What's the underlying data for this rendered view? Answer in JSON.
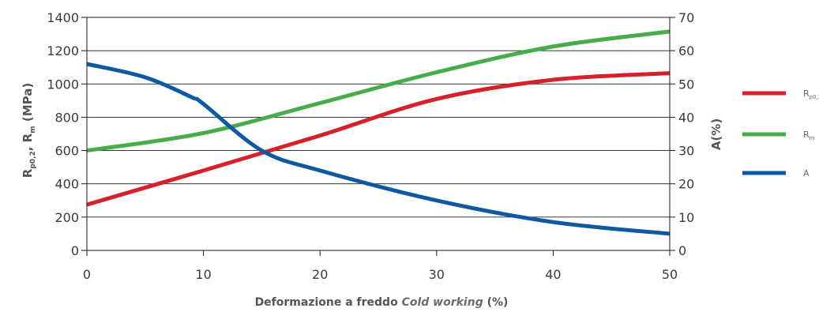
{
  "chart_data": {
    "type": "line",
    "x": [
      0,
      10,
      20,
      30,
      40,
      50
    ],
    "xlim": [
      0,
      50
    ],
    "xticks": [
      0,
      10,
      20,
      30,
      40,
      50
    ],
    "xlabel": {
      "main": "Deformazione a freddo ",
      "italic": "Cold working",
      "unit": " (%)"
    },
    "y_left": {
      "lim": [
        0,
        1400
      ],
      "ticks": [
        0,
        200,
        400,
        600,
        800,
        1000,
        1200,
        1400
      ],
      "label": {
        "r": "R",
        "rp_sub": "p0,2",
        "sep": ", R",
        "rm_sub": "m",
        "unit": " (MPa)"
      }
    },
    "y_right": {
      "lim": [
        0,
        70
      ],
      "ticks": [
        0,
        10,
        20,
        30,
        40,
        50,
        60,
        70
      ],
      "label": "A(%)"
    },
    "grid": "horizontal",
    "legend_position": "right",
    "series": [
      {
        "id": "rp02",
        "legend_main": "R",
        "legend_sub": "p0,2",
        "axis": "left",
        "color": "#d7202a",
        "points": [
          [
            0,
            275
          ],
          [
            10,
            480
          ],
          [
            20,
            690
          ],
          [
            30,
            910
          ],
          [
            40,
            1025
          ],
          [
            50,
            1065
          ]
        ]
      },
      {
        "id": "rm",
        "legend_main": "R",
        "legend_sub": "m",
        "axis": "left",
        "color": "#46ad48",
        "points": [
          [
            0,
            600
          ],
          [
            10,
            705
          ],
          [
            20,
            885
          ],
          [
            30,
            1070
          ],
          [
            40,
            1225
          ],
          [
            50,
            1315
          ]
        ]
      },
      {
        "id": "a",
        "legend_main": "A",
        "legend_sub": "",
        "axis": "right",
        "color": "#0e5aa2",
        "points": [
          [
            0,
            56
          ],
          [
            5,
            52
          ],
          [
            9,
            46
          ],
          [
            10,
            44
          ],
          [
            15,
            30
          ],
          [
            20,
            24
          ],
          [
            30,
            15
          ],
          [
            40,
            8.5
          ],
          [
            50,
            5
          ]
        ]
      }
    ]
  }
}
